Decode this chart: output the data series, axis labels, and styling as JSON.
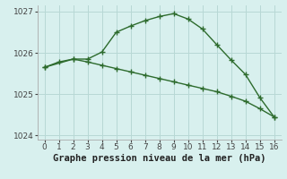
{
  "line1_x": [
    0,
    1,
    2,
    3,
    4,
    5,
    6,
    7,
    8,
    9,
    10,
    11,
    12,
    13,
    14,
    15,
    16
  ],
  "line1_y": [
    1025.65,
    1025.78,
    1025.85,
    1025.85,
    1026.02,
    1026.5,
    1026.65,
    1026.78,
    1026.88,
    1026.95,
    1026.82,
    1026.58,
    1026.2,
    1025.83,
    1025.48,
    1024.92,
    1024.45
  ],
  "line2_x": [
    0,
    2,
    3,
    4,
    5,
    6,
    7,
    8,
    9,
    10,
    11,
    12,
    13,
    14,
    15,
    16
  ],
  "line2_y": [
    1025.65,
    1025.85,
    1025.78,
    1025.7,
    1025.62,
    1025.54,
    1025.46,
    1025.38,
    1025.3,
    1025.22,
    1025.14,
    1025.06,
    1024.95,
    1024.83,
    1024.65,
    1024.45
  ],
  "line_color": "#2d6b2d",
  "bg_color": "#d8f0ee",
  "grid_color": "#b8d8d5",
  "xlabel": "Graphe pression niveau de la mer (hPa)",
  "xlim": [
    -0.5,
    16.5
  ],
  "ylim": [
    1023.9,
    1027.15
  ],
  "yticks": [
    1024,
    1025,
    1026,
    1027
  ],
  "ytick_labels": [
    "1024",
    "1025",
    "1026",
    "1027"
  ],
  "xticks": [
    0,
    1,
    2,
    3,
    4,
    5,
    6,
    7,
    8,
    9,
    10,
    11,
    12,
    13,
    14,
    15,
    16
  ],
  "marker": "+",
  "markersize": 4,
  "markeredgewidth": 1.0,
  "linewidth": 1.0,
  "xlabel_fontsize": 7.5,
  "tick_fontsize": 6.5
}
